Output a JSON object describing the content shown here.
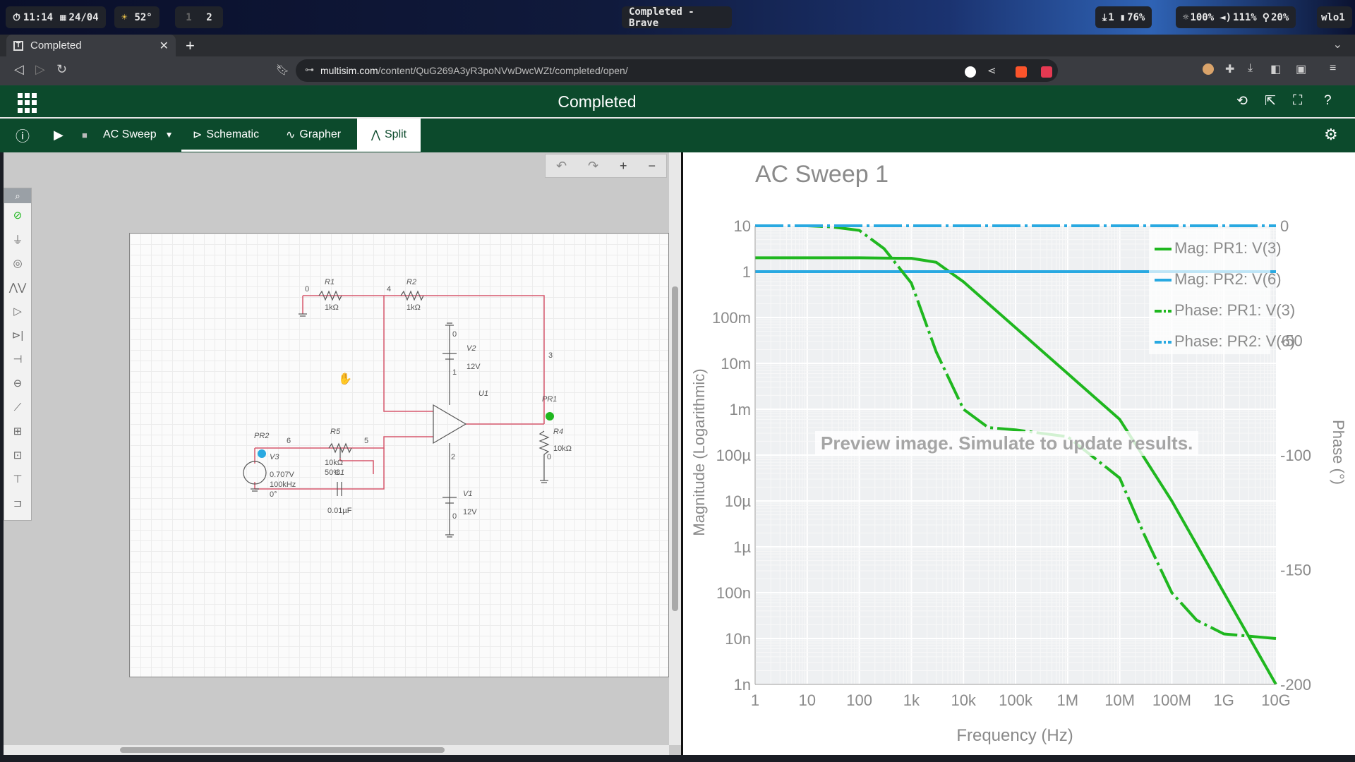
{
  "system": {
    "time": "11:14",
    "date": "24/04",
    "weather": "52°",
    "workspaces": [
      "1",
      "2"
    ],
    "window_title": "Completed - Brave",
    "downloads": "1",
    "battery": "76%",
    "brightness": "100%",
    "volume": "111%",
    "mic": "20%",
    "network": "wlo1"
  },
  "browser": {
    "tab_title": "Completed",
    "url_host": "multisim.com",
    "url_path": "/content/QuG269A3yR3poNVwDwcWZt/completed/open/"
  },
  "app": {
    "title": "Completed",
    "analysis": "AC Sweep",
    "tabs": [
      {
        "label": "Schematic"
      },
      {
        "label": "Grapher"
      },
      {
        "label": "Split"
      }
    ]
  },
  "schematic": {
    "components": {
      "R1": "R1",
      "R1_val": "1kΩ",
      "R2": "R2",
      "R2_val": "1kΩ",
      "R4": "R4",
      "R4_val": "10kΩ",
      "R5": "R5",
      "R5_val": "10kΩ",
      "R5_pct": "50%",
      "C1": "C1",
      "C1_val": "0.01µF",
      "V1": "V1",
      "V1_val": "12V",
      "V2": "V2",
      "V2_val": "12V",
      "V3": "V3",
      "V3_amp": "0.707V",
      "V3_freq": "100kHz",
      "V3_phase": "0°",
      "U1": "U1",
      "PR1": "PR1",
      "PR2": "PR2"
    },
    "nodes": {
      "n0": "0",
      "n1": "1",
      "n2": "2",
      "n3": "3",
      "n4": "4",
      "n5": "5",
      "n6": "6"
    }
  },
  "chart_data": {
    "type": "line",
    "title": "AC Sweep 1",
    "xlabel": "Frequency (Hz)",
    "ylabel": "Magnitude (Logarithmic)",
    "y2label": "Phase (°)",
    "x_scale": "log",
    "y_scale": "log",
    "xlim": [
      1,
      10000000000
    ],
    "ylim": [
      1e-09,
      10
    ],
    "y2lim": [
      -200,
      0
    ],
    "x_ticks": [
      "1",
      "10",
      "100",
      "1k",
      "10k",
      "100k",
      "1M",
      "10M",
      "100M",
      "1G",
      "10G"
    ],
    "y_ticks": [
      "10",
      "1",
      "100m",
      "10m",
      "1m",
      "100µ",
      "10µ",
      "1µ",
      "100n",
      "10n",
      "1n"
    ],
    "y2_ticks": [
      "0",
      "-50",
      "-100",
      "-150",
      "-200"
    ],
    "grid": true,
    "legend_position": "top-right",
    "overlay_text": "Preview image. Simulate to update results.",
    "series": [
      {
        "name": "Mag: PR1: V(3)",
        "axis": "left",
        "color": "#1fb71f",
        "dash": "solid",
        "x": [
          1,
          10,
          100,
          1000,
          3000,
          10000,
          100000,
          1000000,
          10000000,
          100000000,
          1000000000,
          10000000000
        ],
        "y": [
          2,
          2,
          2,
          1.95,
          1.6,
          0.6,
          0.06,
          0.006,
          0.0006,
          1e-05,
          1e-07,
          1e-09
        ]
      },
      {
        "name": "Mag: PR2: V(6)",
        "axis": "left",
        "color": "#29a9e1",
        "dash": "solid",
        "x": [
          1,
          10000000000
        ],
        "y": [
          1,
          1
        ]
      },
      {
        "name": "Phase: PR1: V(3)",
        "axis": "right",
        "color": "#1fb71f",
        "dash": "dashdot",
        "x": [
          1,
          10,
          30,
          100,
          300,
          1000,
          3000,
          10000,
          30000,
          100000,
          1000000,
          10000000,
          30000000,
          100000000,
          300000000,
          1000000000,
          10000000000
        ],
        "y": [
          0,
          0,
          -0.5,
          -2,
          -10,
          -25,
          -55,
          -80,
          -88,
          -89,
          -92,
          -110,
          -135,
          -160,
          -172,
          -178,
          -180
        ]
      },
      {
        "name": "Phase: PR2: V(6)",
        "axis": "right",
        "color": "#29a9e1",
        "dash": "dashdot",
        "x": [
          1,
          10000000000
        ],
        "y": [
          0,
          0
        ]
      }
    ]
  }
}
